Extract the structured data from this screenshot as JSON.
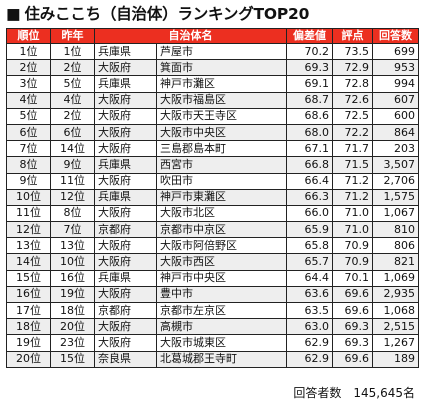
{
  "title": {
    "bullet": "■",
    "text": "住みここち（自治体）ランキングTOP20"
  },
  "table": {
    "headers": [
      "順位",
      "昨年",
      "",
      "自治体名",
      "偏差値",
      "評点",
      "回答数"
    ],
    "rows": [
      [
        "1位",
        "1位",
        "兵庫県",
        "芦屋市",
        "70.2",
        "73.5",
        "699"
      ],
      [
        "2位",
        "2位",
        "大阪府",
        "箕面市",
        "69.3",
        "72.9",
        "953"
      ],
      [
        "3位",
        "5位",
        "兵庫県",
        "神戸市灘区",
        "69.1",
        "72.8",
        "994"
      ],
      [
        "4位",
        "4位",
        "大阪府",
        "大阪市福島区",
        "68.7",
        "72.6",
        "607"
      ],
      [
        "5位",
        "2位",
        "大阪府",
        "大阪市天王寺区",
        "68.6",
        "72.5",
        "600"
      ],
      [
        "6位",
        "6位",
        "大阪府",
        "大阪市中央区",
        "68.0",
        "72.2",
        "864"
      ],
      [
        "7位",
        "14位",
        "大阪府",
        "三島郡島本町",
        "67.1",
        "71.7",
        "203"
      ],
      [
        "8位",
        "9位",
        "兵庫県",
        "西宮市",
        "66.8",
        "71.5",
        "3,507"
      ],
      [
        "9位",
        "11位",
        "大阪府",
        "吹田市",
        "66.4",
        "71.2",
        "2,706"
      ],
      [
        "10位",
        "12位",
        "兵庫県",
        "神戸市東灘区",
        "66.3",
        "71.2",
        "1,575"
      ],
      [
        "11位",
        "8位",
        "大阪府",
        "大阪市北区",
        "66.0",
        "71.0",
        "1,067"
      ],
      [
        "12位",
        "7位",
        "京都府",
        "京都市中京区",
        "65.9",
        "71.0",
        "810"
      ],
      [
        "13位",
        "13位",
        "大阪府",
        "大阪市阿倍野区",
        "65.8",
        "70.9",
        "806"
      ],
      [
        "14位",
        "10位",
        "大阪府",
        "大阪市西区",
        "65.7",
        "70.9",
        "821"
      ],
      [
        "15位",
        "16位",
        "兵庫県",
        "神戸市中央区",
        "64.4",
        "70.1",
        "1,069"
      ],
      [
        "16位",
        "19位",
        "大阪府",
        "豊中市",
        "63.6",
        "69.6",
        "2,935"
      ],
      [
        "17位",
        "18位",
        "京都府",
        "京都市左京区",
        "63.5",
        "69.6",
        "1,068"
      ],
      [
        "18位",
        "20位",
        "大阪府",
        "高槻市",
        "63.0",
        "69.3",
        "2,515"
      ],
      [
        "19位",
        "23位",
        "大阪府",
        "大阪市城東区",
        "62.9",
        "69.3",
        "1,267"
      ],
      [
        "20位",
        "15位",
        "奈良県",
        "北葛城郡王寺町",
        "62.9",
        "69.6",
        "189"
      ]
    ]
  },
  "footer": {
    "label": "回答者数",
    "value": "145,645名"
  },
  "colors": {
    "header_bg": "#ec2f20",
    "header_text": "#ffffff",
    "alt_row": "#eeeeee"
  }
}
